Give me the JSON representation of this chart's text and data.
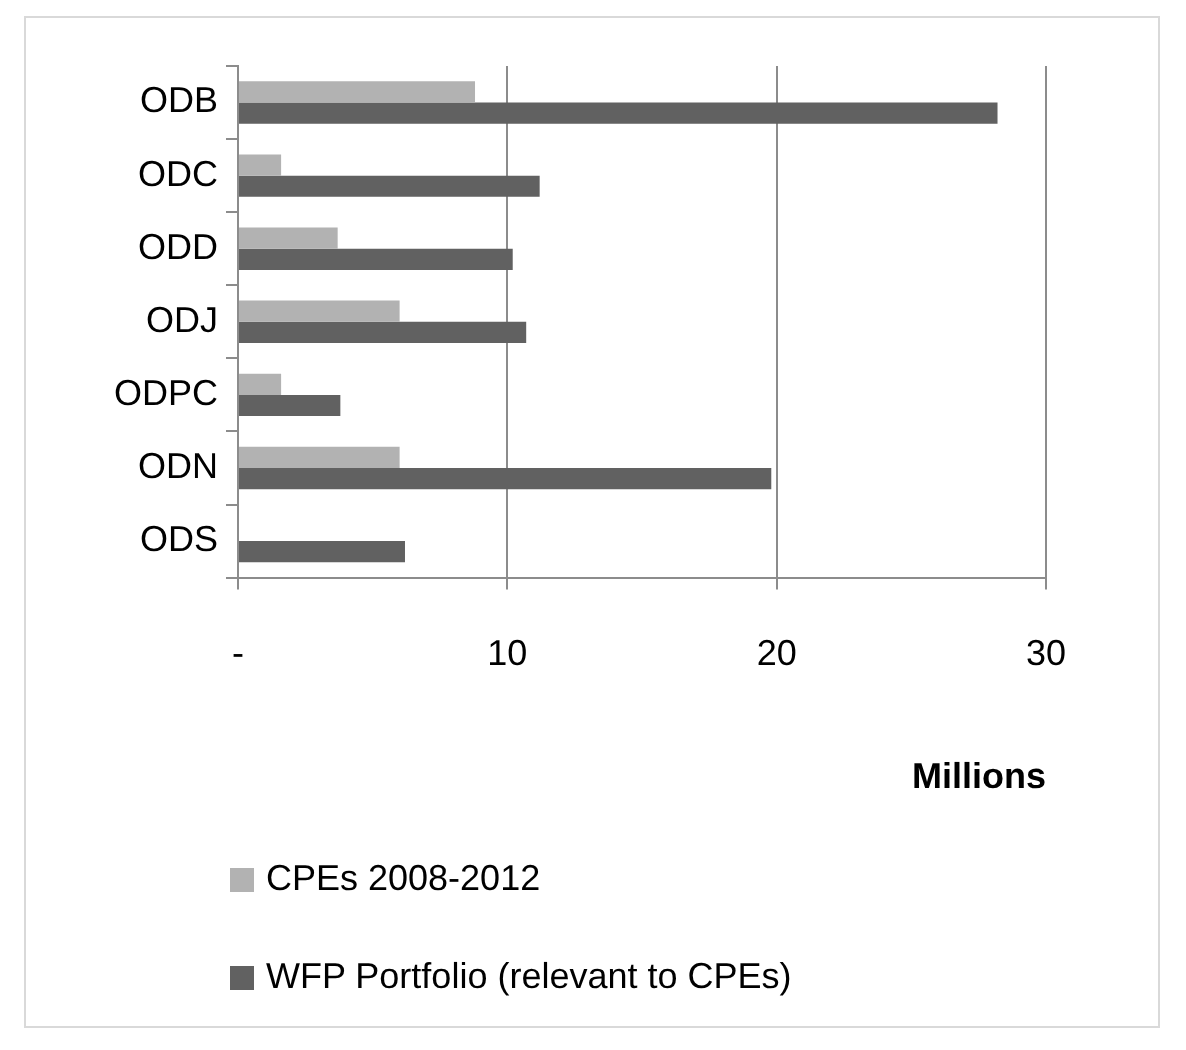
{
  "chart_data": {
    "type": "bar",
    "orientation": "horizontal",
    "xlabel": "Millions",
    "categories": [
      "ODB",
      "ODC",
      "ODD",
      "ODJ",
      "ODPC",
      "ODN",
      "ODS"
    ],
    "series": [
      {
        "name": "CPEs 2008-2012",
        "color": "#b2b2b2",
        "values": [
          8.8,
          1.6,
          3.7,
          6.0,
          1.6,
          6.0,
          null
        ]
      },
      {
        "name": "WFP Portfolio (relevant to CPEs)",
        "color": "#616161",
        "values": [
          28.2,
          11.2,
          10.2,
          10.7,
          3.8,
          19.8,
          6.2
        ]
      }
    ],
    "xlim": [
      0,
      30
    ],
    "xticks": [
      {
        "value": 0,
        "label": "-"
      },
      10,
      20,
      30
    ],
    "grid": "x",
    "legend": "bottom"
  }
}
